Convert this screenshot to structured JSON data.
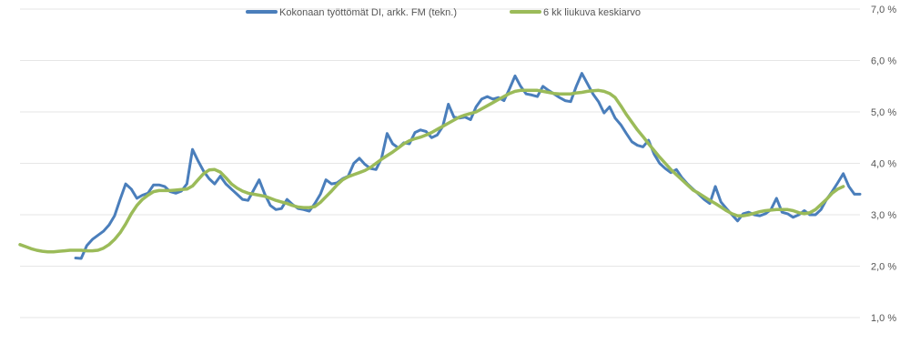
{
  "chart_data": {
    "type": "line",
    "y_axis": {
      "position": "right",
      "ylim": [
        0.7,
        7.0
      ],
      "ticks": [
        1.0,
        2.0,
        3.0,
        4.0,
        5.0,
        6.0,
        7.0
      ],
      "tick_labels": [
        "1,0 %",
        "2,0 %",
        "3,0 %",
        "4,0 %",
        "5,0 %",
        "6,0 %",
        "7,0 %"
      ]
    },
    "grid": true,
    "legend": "top",
    "series": [
      {
        "name": "Kokonaan työttömät DI, arkk. FM (tekn.)",
        "color": "#4a7ebb",
        "values": [
          null,
          null,
          null,
          null,
          null,
          null,
          null,
          null,
          null,
          null,
          2.16,
          2.15,
          2.4,
          2.52,
          2.6,
          2.68,
          2.8,
          2.98,
          3.3,
          3.6,
          3.5,
          3.32,
          3.38,
          3.42,
          3.58,
          3.58,
          3.55,
          3.45,
          3.42,
          3.46,
          3.6,
          4.27,
          4.05,
          3.85,
          3.7,
          3.6,
          3.75,
          3.6,
          3.5,
          3.4,
          3.3,
          3.28,
          3.48,
          3.68,
          3.4,
          3.18,
          3.1,
          3.12,
          3.3,
          3.2,
          3.12,
          3.1,
          3.07,
          3.22,
          3.4,
          3.68,
          3.6,
          3.62,
          3.7,
          3.75,
          4.0,
          4.1,
          3.98,
          3.9,
          3.88,
          4.1,
          4.58,
          4.38,
          4.3,
          4.4,
          4.38,
          4.6,
          4.65,
          4.62,
          4.5,
          4.55,
          4.72,
          5.15,
          4.9,
          4.88,
          4.9,
          4.85,
          5.1,
          5.25,
          5.3,
          5.25,
          5.28,
          5.22,
          5.45,
          5.7,
          5.5,
          5.35,
          5.33,
          5.3,
          5.5,
          5.42,
          5.35,
          5.28,
          5.22,
          5.2,
          5.5,
          5.75,
          5.55,
          5.35,
          5.2,
          4.98,
          5.1,
          4.88,
          4.75,
          4.58,
          4.42,
          4.35,
          4.32,
          4.45,
          4.18,
          4.0,
          3.9,
          3.82,
          3.88,
          3.72,
          3.6,
          3.5,
          3.4,
          3.3,
          3.22,
          3.55,
          3.25,
          3.12,
          3.0,
          2.88,
          3.02,
          3.05,
          3.0,
          2.98,
          3.02,
          3.1,
          3.32,
          3.05,
          3.02,
          2.95,
          3.0,
          3.08,
          3.0,
          3.0,
          3.1,
          3.3,
          3.45,
          3.62,
          3.8,
          3.55,
          3.4,
          3.4
        ]
      },
      {
        "name": "6 kk liukuva keskiarvo",
        "color": "#9bbb59",
        "values": [
          2.42,
          2.38,
          2.34,
          2.31,
          2.29,
          2.28,
          2.28,
          2.29,
          2.3,
          2.31,
          2.31,
          2.31,
          2.3,
          2.3,
          2.31,
          2.35,
          2.42,
          2.52,
          2.65,
          2.82,
          3.02,
          3.18,
          3.3,
          3.38,
          3.45,
          3.47,
          3.47,
          3.47,
          3.48,
          3.49,
          3.5,
          3.56,
          3.68,
          3.8,
          3.87,
          3.88,
          3.83,
          3.72,
          3.6,
          3.52,
          3.46,
          3.42,
          3.4,
          3.38,
          3.36,
          3.32,
          3.28,
          3.25,
          3.22,
          3.18,
          3.15,
          3.14,
          3.14,
          3.16,
          3.24,
          3.35,
          3.46,
          3.58,
          3.68,
          3.74,
          3.78,
          3.82,
          3.86,
          3.92,
          4.0,
          4.08,
          4.15,
          4.22,
          4.3,
          4.38,
          4.44,
          4.48,
          4.51,
          4.55,
          4.6,
          4.66,
          4.72,
          4.78,
          4.84,
          4.9,
          4.94,
          4.97,
          5.0,
          5.06,
          5.12,
          5.18,
          5.24,
          5.3,
          5.36,
          5.4,
          5.42,
          5.42,
          5.42,
          5.42,
          5.4,
          5.38,
          5.36,
          5.35,
          5.35,
          5.35,
          5.37,
          5.38,
          5.4,
          5.41,
          5.42,
          5.4,
          5.36,
          5.28,
          5.12,
          4.95,
          4.8,
          4.65,
          4.52,
          4.38,
          4.25,
          4.12,
          4.0,
          3.88,
          3.78,
          3.68,
          3.58,
          3.48,
          3.42,
          3.35,
          3.28,
          3.22,
          3.15,
          3.08,
          3.02,
          2.98,
          2.98,
          3.0,
          3.03,
          3.06,
          3.08,
          3.09,
          3.1,
          3.1,
          3.1,
          3.08,
          3.04,
          3.02,
          3.04,
          3.1,
          3.2,
          3.3,
          3.42,
          3.5,
          3.55
        ]
      }
    ]
  }
}
